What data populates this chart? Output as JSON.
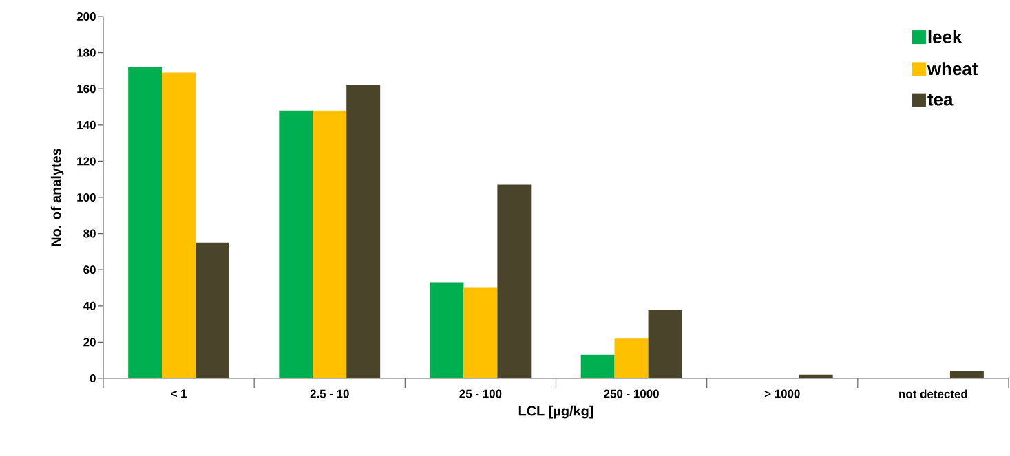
{
  "chart_data": {
    "type": "bar",
    "xlabel": "LCL [µg/kg]",
    "ylabel": "No. of analytes",
    "categories": [
      "< 1",
      "2.5 - 10",
      "25 - 100",
      "250 - 1000",
      "> 1000",
      "not detected"
    ],
    "series": [
      {
        "name": "leek",
        "color": "#00b050",
        "values": [
          172,
          148,
          53,
          13,
          0,
          0
        ]
      },
      {
        "name": "wheat",
        "color": "#ffc000",
        "values": [
          169,
          148,
          50,
          22,
          0,
          0
        ]
      },
      {
        "name": "tea",
        "color": "#4a442a",
        "values": [
          75,
          162,
          107,
          38,
          2,
          4
        ]
      }
    ],
    "ylim": [
      0,
      200
    ],
    "yticks": [
      0,
      20,
      40,
      60,
      80,
      100,
      120,
      140,
      160,
      180,
      200
    ],
    "grid": false,
    "legend": "top right"
  }
}
